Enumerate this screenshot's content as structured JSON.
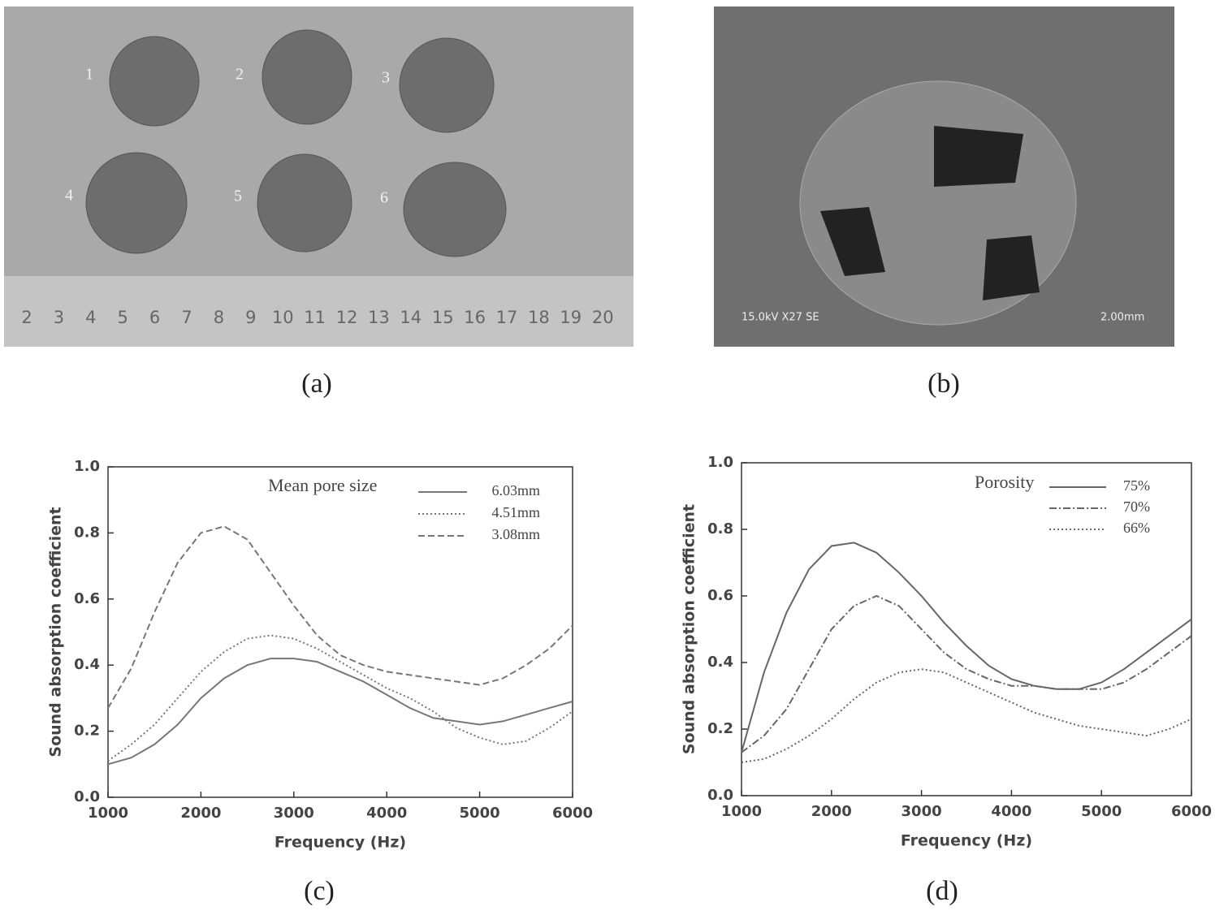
{
  "figure": {
    "panel_labels": [
      "(a)",
      "(b)",
      "(c)",
      "(d)"
    ],
    "photo_a": {
      "sample_labels": [
        "1",
        "2",
        "3",
        "4",
        "5",
        "6"
      ],
      "ruler_labels": [
        "2",
        "3",
        "4",
        "5",
        "6",
        "7",
        "8",
        "9",
        "10",
        "11",
        "12",
        "13",
        "14",
        "15",
        "16",
        "17",
        "18",
        "19",
        "20"
      ]
    },
    "photo_b": {
      "labels": [
        "15.0kV X27 SE",
        "2.00mm"
      ]
    }
  },
  "chart_data": [
    {
      "type": "line",
      "xlabel": "Frequency (Hz)",
      "ylabel": "Sound absorption coefficient",
      "legend_title": "Mean pore size",
      "legend": "upper right",
      "x": [
        1000,
        1250,
        1500,
        1750,
        2000,
        2250,
        2500,
        2750,
        3000,
        3250,
        3500,
        3750,
        4000,
        4250,
        4500,
        4750,
        5000,
        5250,
        5500,
        5750,
        6000
      ],
      "series": [
        {
          "name": "6.03mm",
          "color": "#777777",
          "dash": "solid",
          "values": [
            0.1,
            0.12,
            0.16,
            0.22,
            0.3,
            0.36,
            0.4,
            0.42,
            0.42,
            0.41,
            0.38,
            0.35,
            0.31,
            0.27,
            0.24,
            0.23,
            0.22,
            0.23,
            0.25,
            0.27,
            0.29
          ]
        },
        {
          "name": "4.51mm",
          "color": "#777777",
          "dash": "dotted",
          "values": [
            0.11,
            0.16,
            0.22,
            0.3,
            0.38,
            0.44,
            0.48,
            0.49,
            0.48,
            0.45,
            0.41,
            0.37,
            0.33,
            0.3,
            0.26,
            0.21,
            0.18,
            0.16,
            0.17,
            0.21,
            0.26
          ]
        },
        {
          "name": "3.08mm",
          "color": "#777777",
          "dash": "dashed",
          "values": [
            0.27,
            0.39,
            0.56,
            0.71,
            0.8,
            0.82,
            0.78,
            0.68,
            0.58,
            0.49,
            0.43,
            0.4,
            0.38,
            0.37,
            0.36,
            0.35,
            0.34,
            0.36,
            0.4,
            0.45,
            0.52
          ]
        }
      ],
      "xlim": [
        1000,
        6000
      ],
      "xticks": [
        1000,
        2000,
        3000,
        4000,
        5000,
        6000
      ],
      "ylim": [
        0,
        1
      ],
      "yticks": [
        {
          "value": 0,
          "label": "0.0"
        },
        0.2,
        0.4,
        0.6,
        0.8,
        {
          "value": 1,
          "label": "1.0"
        }
      ]
    },
    {
      "type": "line",
      "xlabel": "Frequency (Hz)",
      "ylabel": "Sound absorption coefficient",
      "legend_title": "Porosity",
      "legend": "upper right",
      "x": [
        1000,
        1250,
        1500,
        1750,
        2000,
        2250,
        2500,
        2750,
        3000,
        3250,
        3500,
        3750,
        4000,
        4250,
        4500,
        4750,
        5000,
        5250,
        5500,
        5750,
        6000
      ],
      "series": [
        {
          "name": "75%",
          "color": "#666666",
          "dash": "solid",
          "values": [
            0.13,
            0.37,
            0.55,
            0.68,
            0.75,
            0.76,
            0.73,
            0.67,
            0.6,
            0.52,
            0.45,
            0.39,
            0.35,
            0.33,
            0.32,
            0.32,
            0.34,
            0.38,
            0.43,
            0.48,
            0.53
          ]
        },
        {
          "name": "70%",
          "color": "#666666",
          "dash": "dashdot",
          "values": [
            0.13,
            0.18,
            0.26,
            0.38,
            0.5,
            0.57,
            0.6,
            0.57,
            0.5,
            0.43,
            0.38,
            0.35,
            0.33,
            0.33,
            0.32,
            0.32,
            0.32,
            0.34,
            0.38,
            0.43,
            0.48
          ]
        },
        {
          "name": "66%",
          "color": "#666666",
          "dash": "dotted",
          "values": [
            0.1,
            0.11,
            0.14,
            0.18,
            0.23,
            0.29,
            0.34,
            0.37,
            0.38,
            0.37,
            0.34,
            0.31,
            0.28,
            0.25,
            0.23,
            0.21,
            0.2,
            0.19,
            0.18,
            0.2,
            0.23
          ]
        }
      ],
      "xlim": [
        1000,
        6000
      ],
      "xticks": [
        1000,
        2000,
        3000,
        4000,
        5000,
        6000
      ],
      "ylim": [
        0,
        1
      ],
      "yticks": [
        {
          "value": 0,
          "label": "0.0"
        },
        0.2,
        0.4,
        0.6,
        0.8,
        {
          "value": 1,
          "label": "1.0"
        }
      ]
    }
  ]
}
